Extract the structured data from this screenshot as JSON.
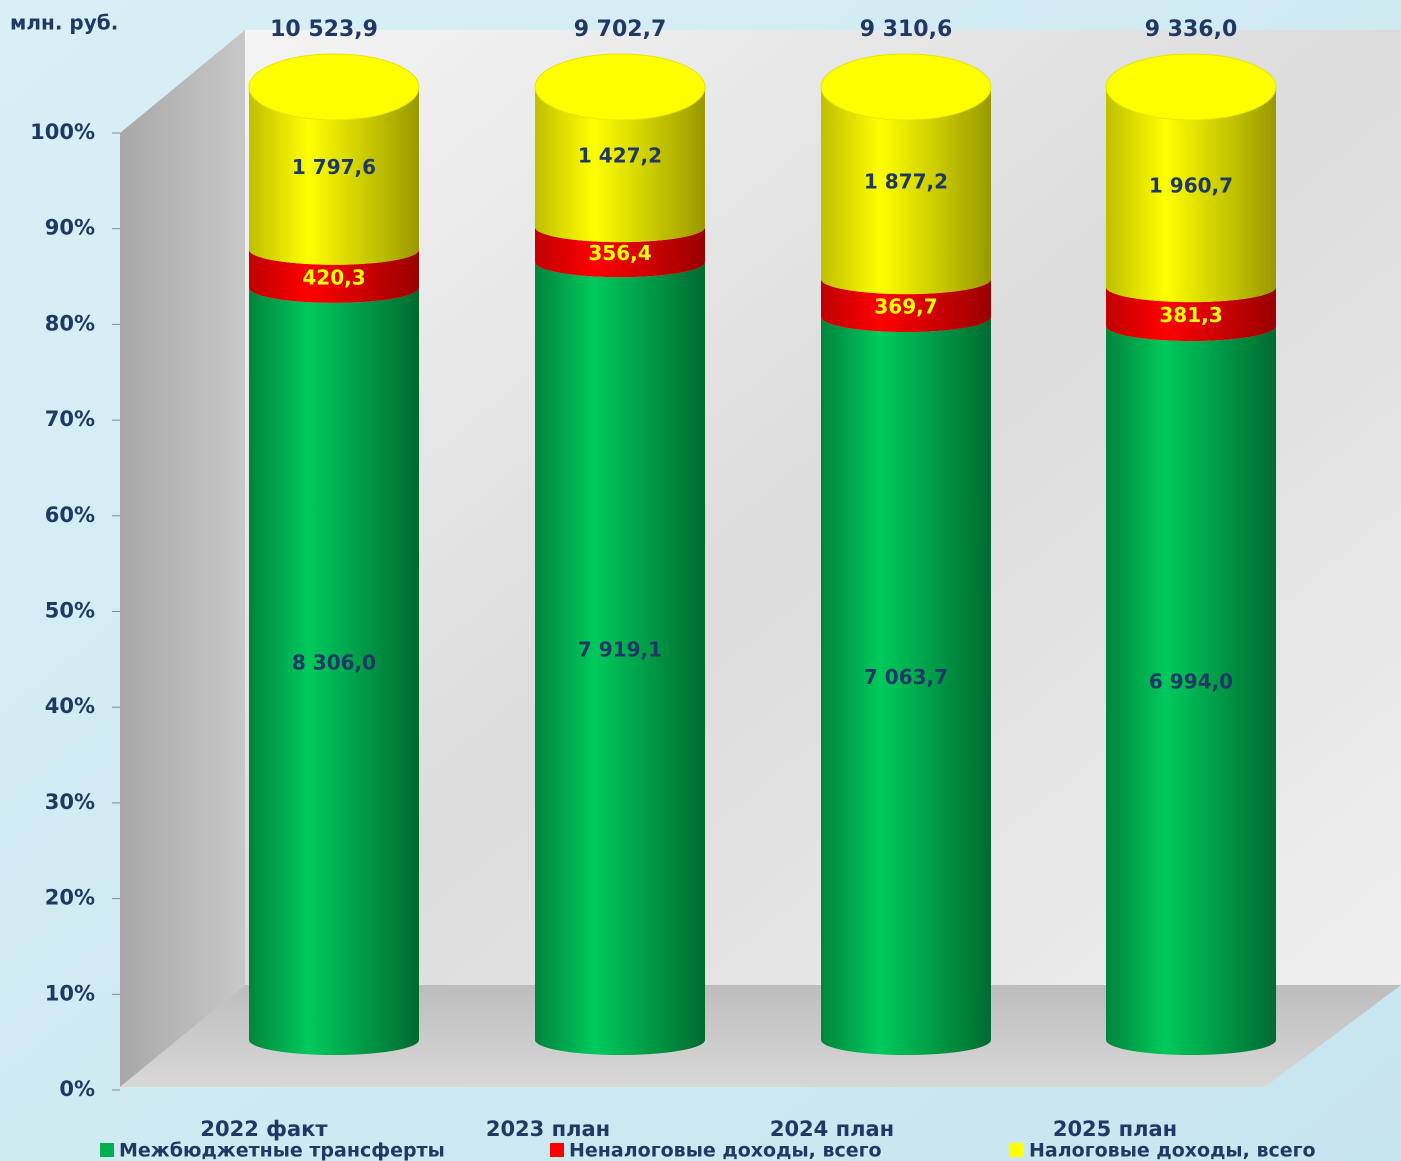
{
  "chart_data": {
    "type": "cylinder",
    "stacking": "percent",
    "unit": "млн. руб.",
    "categories": [
      "2022 факт",
      "2023 план",
      "2024 план",
      "2025 план"
    ],
    "totals": [
      10523.9,
      9702.7,
      9310.6,
      9336.0
    ],
    "total_labels": [
      "10 523,9",
      "9 702,7",
      "9 310,6",
      "9 336,0"
    ],
    "series": [
      {
        "name": "Межбюджетные трансферты",
        "color": "#00b050",
        "values": [
          8306.0,
          7919.1,
          7063.7,
          6994.0
        ],
        "value_labels": [
          "8 306,0",
          "7 919,1",
          "7 063,7",
          "6 994,0"
        ]
      },
      {
        "name": "Неналоговые доходы, всего",
        "color": "#ff0000",
        "values": [
          420.3,
          356.4,
          369.7,
          381.3
        ],
        "value_labels": [
          "420,3",
          "356,4",
          "369,7",
          "381,3"
        ]
      },
      {
        "name": "Налоговые доходы, всего",
        "color": "#ffff00",
        "values": [
          1797.6,
          1427.2,
          1877.2,
          1960.7
        ],
        "value_labels": [
          "1 797,6",
          "1 427,2",
          "1 877,2",
          "1 960,7"
        ]
      }
    ],
    "ylim": [
      0,
      100
    ],
    "yticks": [
      {
        "value": 0,
        "label": "0%"
      },
      {
        "value": 10,
        "label": "10%"
      },
      {
        "value": 20,
        "label": "20%"
      },
      {
        "value": 30,
        "label": "30%"
      },
      {
        "value": 40,
        "label": "40%"
      },
      {
        "value": 50,
        "label": "50%"
      },
      {
        "value": 60,
        "label": "60%"
      },
      {
        "value": 70,
        "label": "70%"
      },
      {
        "value": 80,
        "label": "80%"
      },
      {
        "value": 90,
        "label": "90%"
      },
      {
        "value": 100,
        "label": "100%"
      }
    ]
  }
}
